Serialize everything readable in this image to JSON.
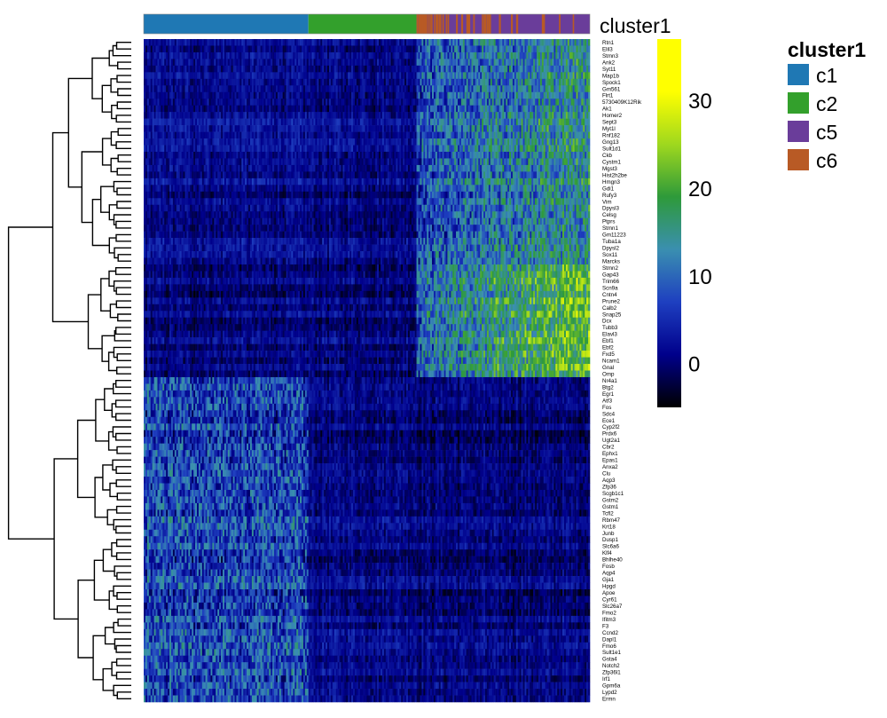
{
  "chart_data": {
    "type": "heatmap",
    "annotation_title": "cluster1",
    "legend": {
      "title": "cluster1",
      "entries": [
        {
          "label": "c1",
          "color": "#1f78b4"
        },
        {
          "label": "c2",
          "color": "#33a02c"
        },
        {
          "label": "c5",
          "color": "#6a3d9a"
        },
        {
          "label": "c6",
          "color": "#b85a25"
        }
      ]
    },
    "colorbar": {
      "range": [
        -5,
        37
      ],
      "ticks": [
        0,
        10,
        20,
        30
      ],
      "tick_labels": [
        "0",
        "10",
        "20",
        "30"
      ],
      "colors": [
        "#000000",
        "#00008b",
        "#1e3fc0",
        "#3a8fb0",
        "#2e9a3a",
        "#9fd81e",
        "#ffff00",
        "#ffff00"
      ]
    },
    "column_groups": [
      {
        "cluster": "c1",
        "fraction": 0.37,
        "color": "#1f78b4"
      },
      {
        "cluster": "c2",
        "fraction": 0.24,
        "color": "#33a02c"
      },
      {
        "cluster": "c6/c5",
        "fraction": 0.39,
        "color": "#6a3d9a"
      }
    ],
    "genes": [
      "Rtn1",
      "Elil3",
      "Stmn3",
      "Ank2",
      "Syt11",
      "Map1b",
      "Spock1",
      "Gm561",
      "Flrt1",
      "5730409K12Rik",
      "Ak1",
      "Homer2",
      "Sept3",
      "Myt1l",
      "Rnf182",
      "Gng13",
      "Sult1d1",
      "Ckb",
      "Cystm1",
      "Mgst3",
      "Hist2h2be",
      "Hmgn3",
      "Gdi1",
      "Rufy3",
      "Vim",
      "Dpysl3",
      "Celsg",
      "Ptprs",
      "Stmn1",
      "Gm11223",
      "Tuba1a",
      "Dpysl2",
      "Sox11",
      "Marcks",
      "Stmn2",
      "Gap43",
      "Trim66",
      "Scn9a",
      "Cntn4",
      "Prune2",
      "Calb2",
      "Snap25",
      "Dcx",
      "Tubb3",
      "Elavl3",
      "Ebf1",
      "Ebf2",
      "Fxd5",
      "Ncam1",
      "Gnal",
      "Omp",
      "Nr4a1",
      "Btg2",
      "Egr1",
      "Atf3",
      "Fos",
      "Sdc4",
      "Ece1",
      "Cyp2f2",
      "Prdx6",
      "Ugt2a1",
      "Cbr2",
      "Ephx1",
      "Epas1",
      "Anxa2",
      "Clu",
      "Aqp3",
      "Zfp36",
      "Scgb1c1",
      "Gstm2",
      "Gstm1",
      "Tcfl2",
      "Rbm47",
      "Krt18",
      "Junb",
      "Dusp1",
      "Slc6a6",
      "Klf4",
      "Bhlhe40",
      "Fosb",
      "Aqp4",
      "Gja1",
      "Hpgd",
      "Apoe",
      "Cyr61",
      "Slc26a7",
      "Fmo2",
      "Ifitm3",
      "F3",
      "Ccnd2",
      "Dapl1",
      "Fmo6",
      "Sult1e1",
      "Gsta4",
      "Notch2",
      "Zfp36l1",
      "Irf1",
      "Gpm6a",
      "Lypd2",
      "Ermn"
    ],
    "row_blocks": [
      {
        "from": 0,
        "to": 33,
        "mean": [
          2,
          1.5,
          13
        ]
      },
      {
        "from": 34,
        "to": 50,
        "mean": [
          0.5,
          0.5,
          18
        ]
      },
      {
        "from": 51,
        "to": 99,
        "mean": [
          7,
          1.2,
          0.4
        ]
      }
    ]
  }
}
